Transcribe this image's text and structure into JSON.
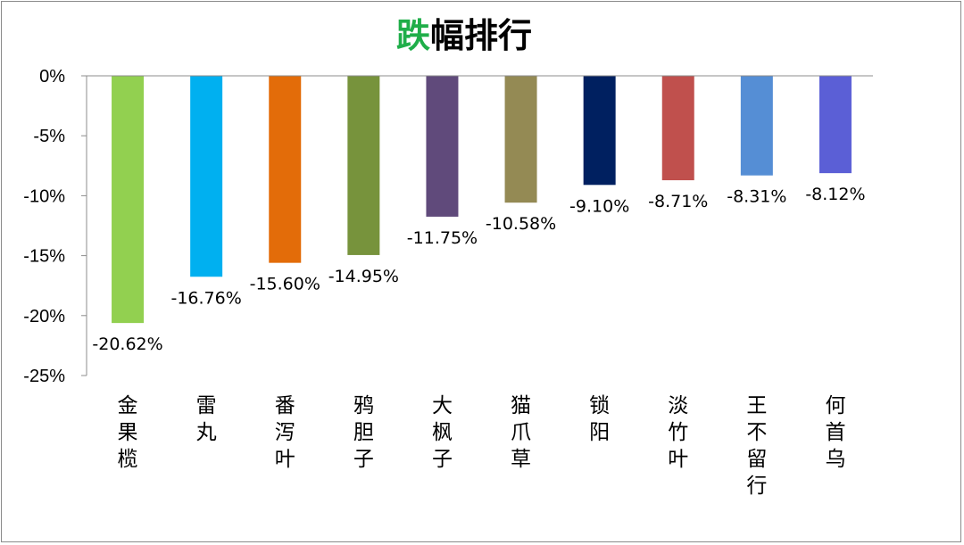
{
  "title": {
    "highlight": "跌",
    "rest": "幅排行",
    "highlight_color": "#1fae49"
  },
  "chart_data": {
    "type": "bar",
    "title": "跌幅排行",
    "xlabel": "",
    "ylabel": "",
    "ylim": [
      -25,
      0
    ],
    "y_ticks": [
      0,
      -5,
      -10,
      -15,
      -20,
      -25
    ],
    "y_tick_labels": [
      "0%",
      "-5%",
      "-10%",
      "-15%",
      "-20%",
      "-25%"
    ],
    "grid": false,
    "categories": [
      "金果榄",
      "雷丸",
      "番泻叶",
      "鸦胆子",
      "大枫子",
      "猫爪草",
      "锁阳",
      "淡竹叶",
      "王不留行",
      "何首乌"
    ],
    "values": [
      -20.62,
      -16.76,
      -15.6,
      -14.95,
      -11.75,
      -10.58,
      -9.1,
      -8.71,
      -8.31,
      -8.12
    ],
    "data_labels": [
      "-20.62%",
      "-16.76%",
      "-15.60%",
      "-14.95%",
      "-11.75%",
      "-10.58%",
      "-9.10%",
      "-8.71%",
      "-8.31%",
      "-8.12%"
    ],
    "colors": [
      "#92d050",
      "#00b0f0",
      "#e36c09",
      "#77933c",
      "#604a7b",
      "#948a54",
      "#002060",
      "#c0504d",
      "#558ed5",
      "#5b5fd6"
    ]
  }
}
